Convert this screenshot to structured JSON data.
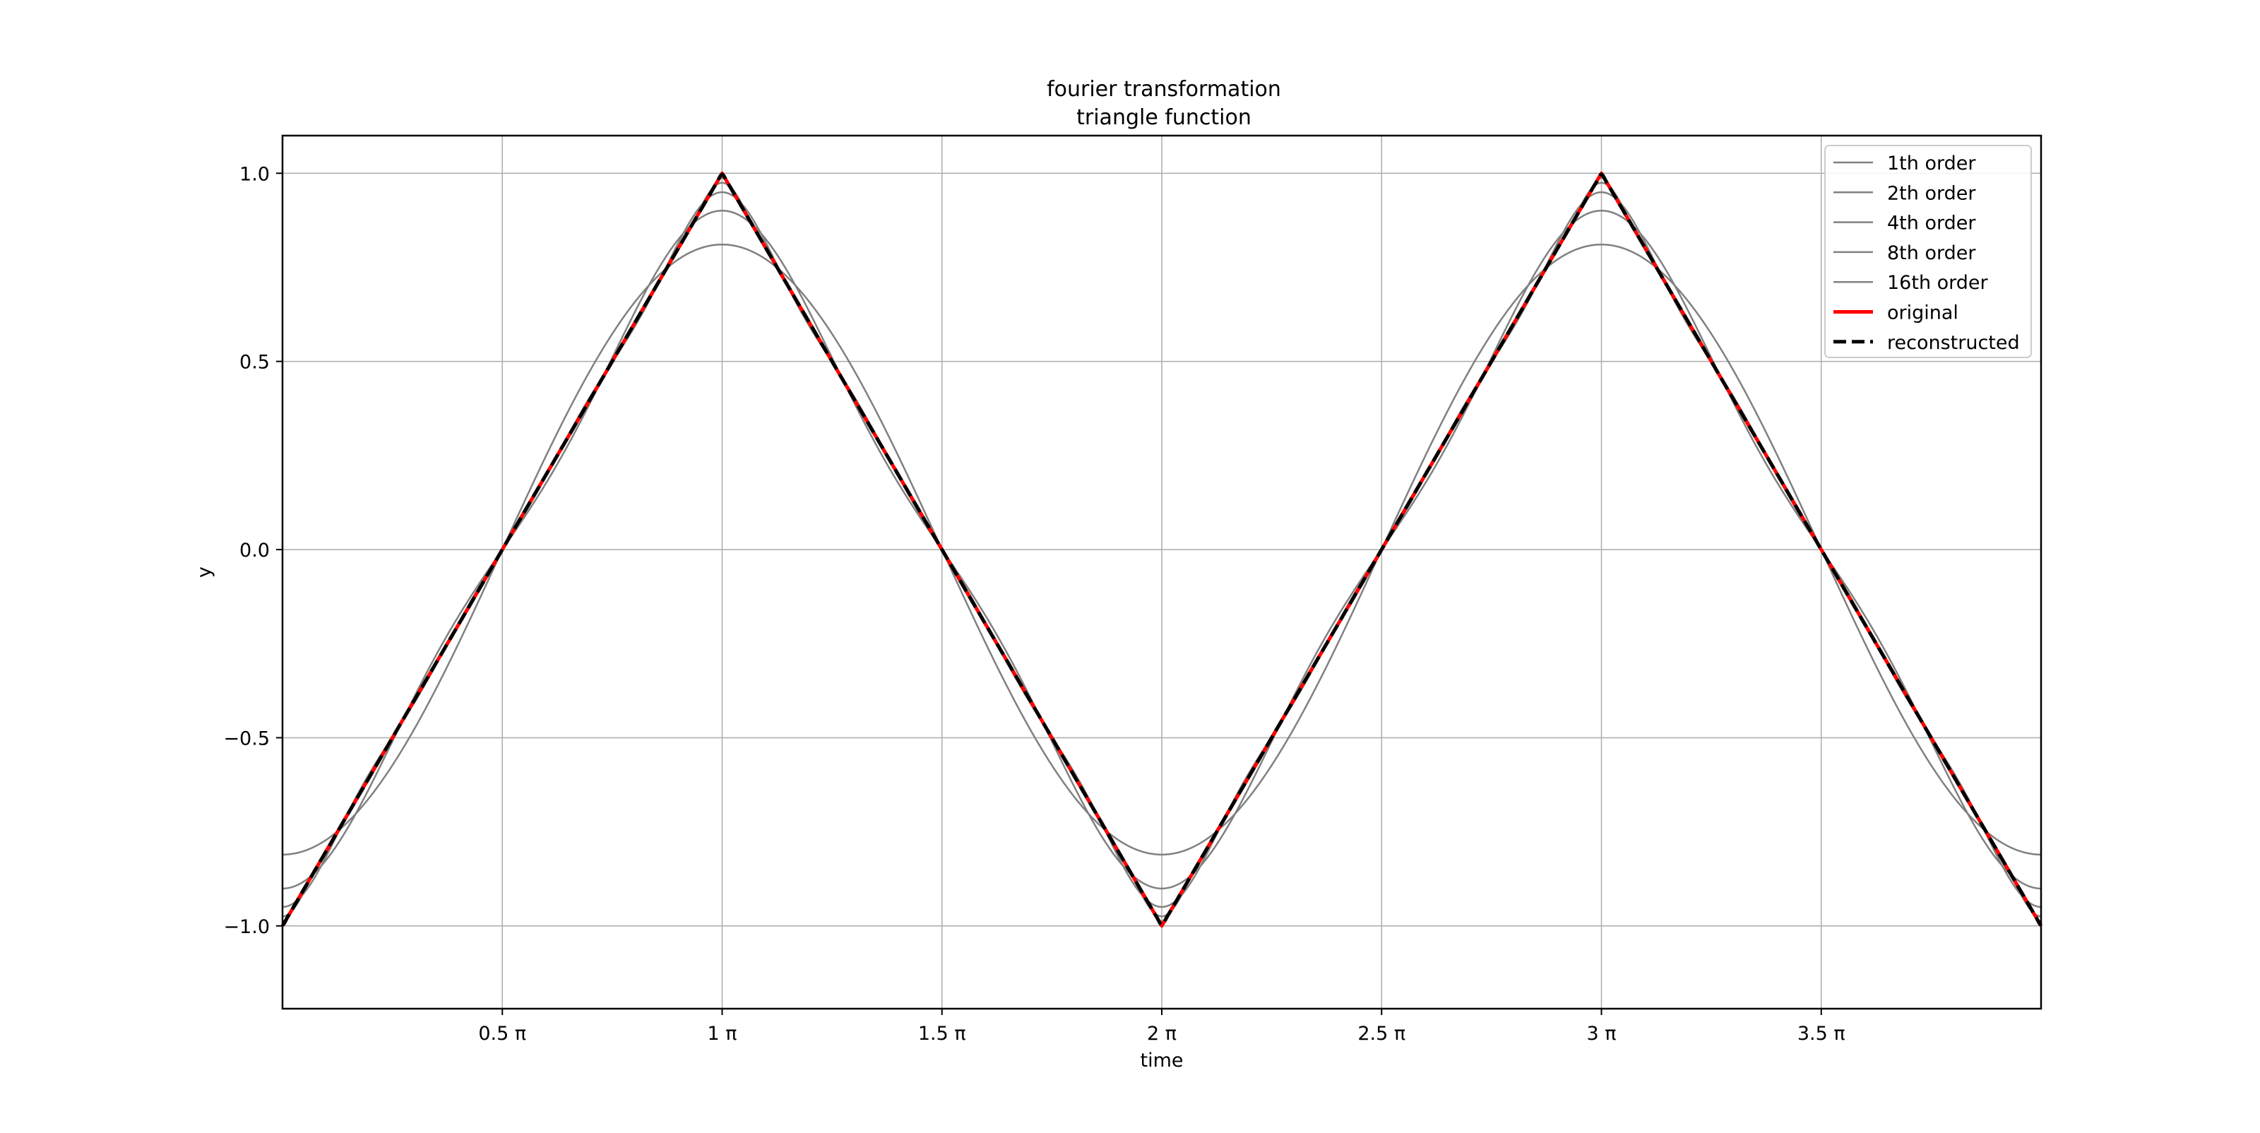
{
  "chart_data": {
    "type": "line",
    "title": "fourier transformation\ntriangle function",
    "xlabel": "time",
    "ylabel": "y",
    "xlim_pi": [
      0,
      4
    ],
    "ylim": [
      -1.22,
      1.1
    ],
    "xticks": [
      {
        "value_pi": 0.5,
        "label": "0.5 π"
      },
      {
        "value_pi": 1.0,
        "label": "1 π"
      },
      {
        "value_pi": 1.5,
        "label": "1.5 π"
      },
      {
        "value_pi": 2.0,
        "label": "2 π"
      },
      {
        "value_pi": 2.5,
        "label": "2.5 π"
      },
      {
        "value_pi": 3.0,
        "label": "3 π"
      },
      {
        "value_pi": 3.5,
        "label": "3.5 π"
      }
    ],
    "yticks": [
      {
        "value": 1.0,
        "label": "1.0"
      },
      {
        "value": 0.5,
        "label": "0.5"
      },
      {
        "value": 0.0,
        "label": "0.0"
      },
      {
        "value": -0.5,
        "label": "−0.5"
      },
      {
        "value": -1.0,
        "label": "−1.0"
      }
    ],
    "grid": true,
    "legend_position": "top-right",
    "function": "triangle wave y(t) = -cos-like triangle, period 2π, y(0) = -1, y(π) = 1",
    "series": [
      {
        "name": "1th order",
        "order": 1,
        "color": "#808080",
        "style": "solid"
      },
      {
        "name": "2th order",
        "order": 2,
        "color": "#808080",
        "style": "solid"
      },
      {
        "name": "4th order",
        "order": 4,
        "color": "#808080",
        "style": "solid"
      },
      {
        "name": "8th order",
        "order": 8,
        "color": "#808080",
        "style": "solid"
      },
      {
        "name": "16th order",
        "order": 16,
        "color": "#808080",
        "style": "solid"
      },
      {
        "name": "original",
        "order": null,
        "color": "#ff0000",
        "style": "solid"
      },
      {
        "name": "reconstructed",
        "order": 64,
        "color": "#000000",
        "style": "dashed"
      }
    ]
  }
}
